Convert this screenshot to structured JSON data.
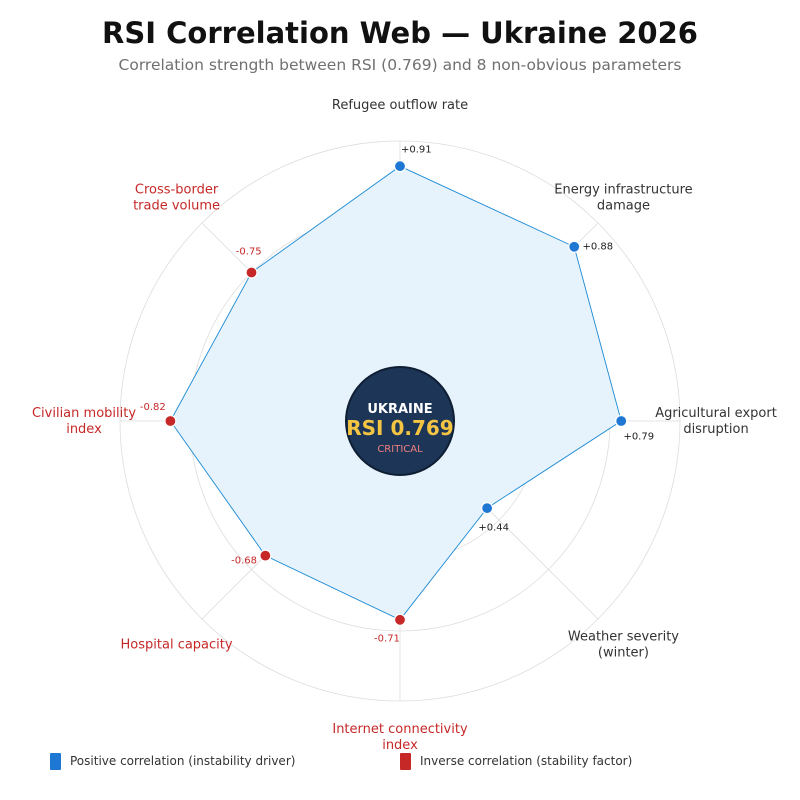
{
  "header": {
    "title": "RSI Correlation Web — Ukraine 2026",
    "subtitle": "Correlation strength between RSI (0.769) and 8 non-obvious parameters"
  },
  "center_badge": {
    "country": "UKRAINE",
    "rsi_label": "RSI 0.769",
    "status": "CRITICAL"
  },
  "legend": {
    "positive_label": "Positive correlation (instability driver)",
    "negative_label": "Inverse correlation (stability factor)"
  },
  "colors": {
    "positive": "#1f77d4",
    "negative": "#c62828",
    "fill": "#e6f2fc",
    "stroke": "#1a8ad4",
    "badge_bg": "#1d3557",
    "badge_text": "#f4c542",
    "status": "#f08080"
  },
  "chart_data": {
    "type": "radar",
    "title": "RSI Correlation Web — Ukraine 2026",
    "subtitle": "Correlation strength between RSI (0.769) and 8 non-obvious parameters",
    "axes": [
      {
        "label": "Refugee outflow rate",
        "value": 0.91,
        "value_label": "+0.91",
        "sign": "positive"
      },
      {
        "label": "Energy infrastructure\ndamage",
        "value": 0.88,
        "value_label": "+0.88",
        "sign": "positive"
      },
      {
        "label": "Agricultural export\ndisruption",
        "value": 0.79,
        "value_label": "+0.79",
        "sign": "positive"
      },
      {
        "label": "Weather severity\n(winter)",
        "value": 0.44,
        "value_label": "+0.44",
        "sign": "positive"
      },
      {
        "label": "Internet connectivity\nindex",
        "value": -0.71,
        "value_label": "-0.71",
        "sign": "negative"
      },
      {
        "label": "Hospital capacity",
        "value": -0.68,
        "value_label": "-0.68",
        "sign": "negative"
      },
      {
        "label": "Civilian mobility\nindex",
        "value": -0.82,
        "value_label": "-0.82",
        "sign": "negative"
      },
      {
        "label": "Cross-border\ntrade volume",
        "value": -0.75,
        "value_label": "-0.75",
        "sign": "negative"
      }
    ],
    "radial_range": [
      0,
      1
    ],
    "grid": true,
    "legend": "bottom"
  }
}
